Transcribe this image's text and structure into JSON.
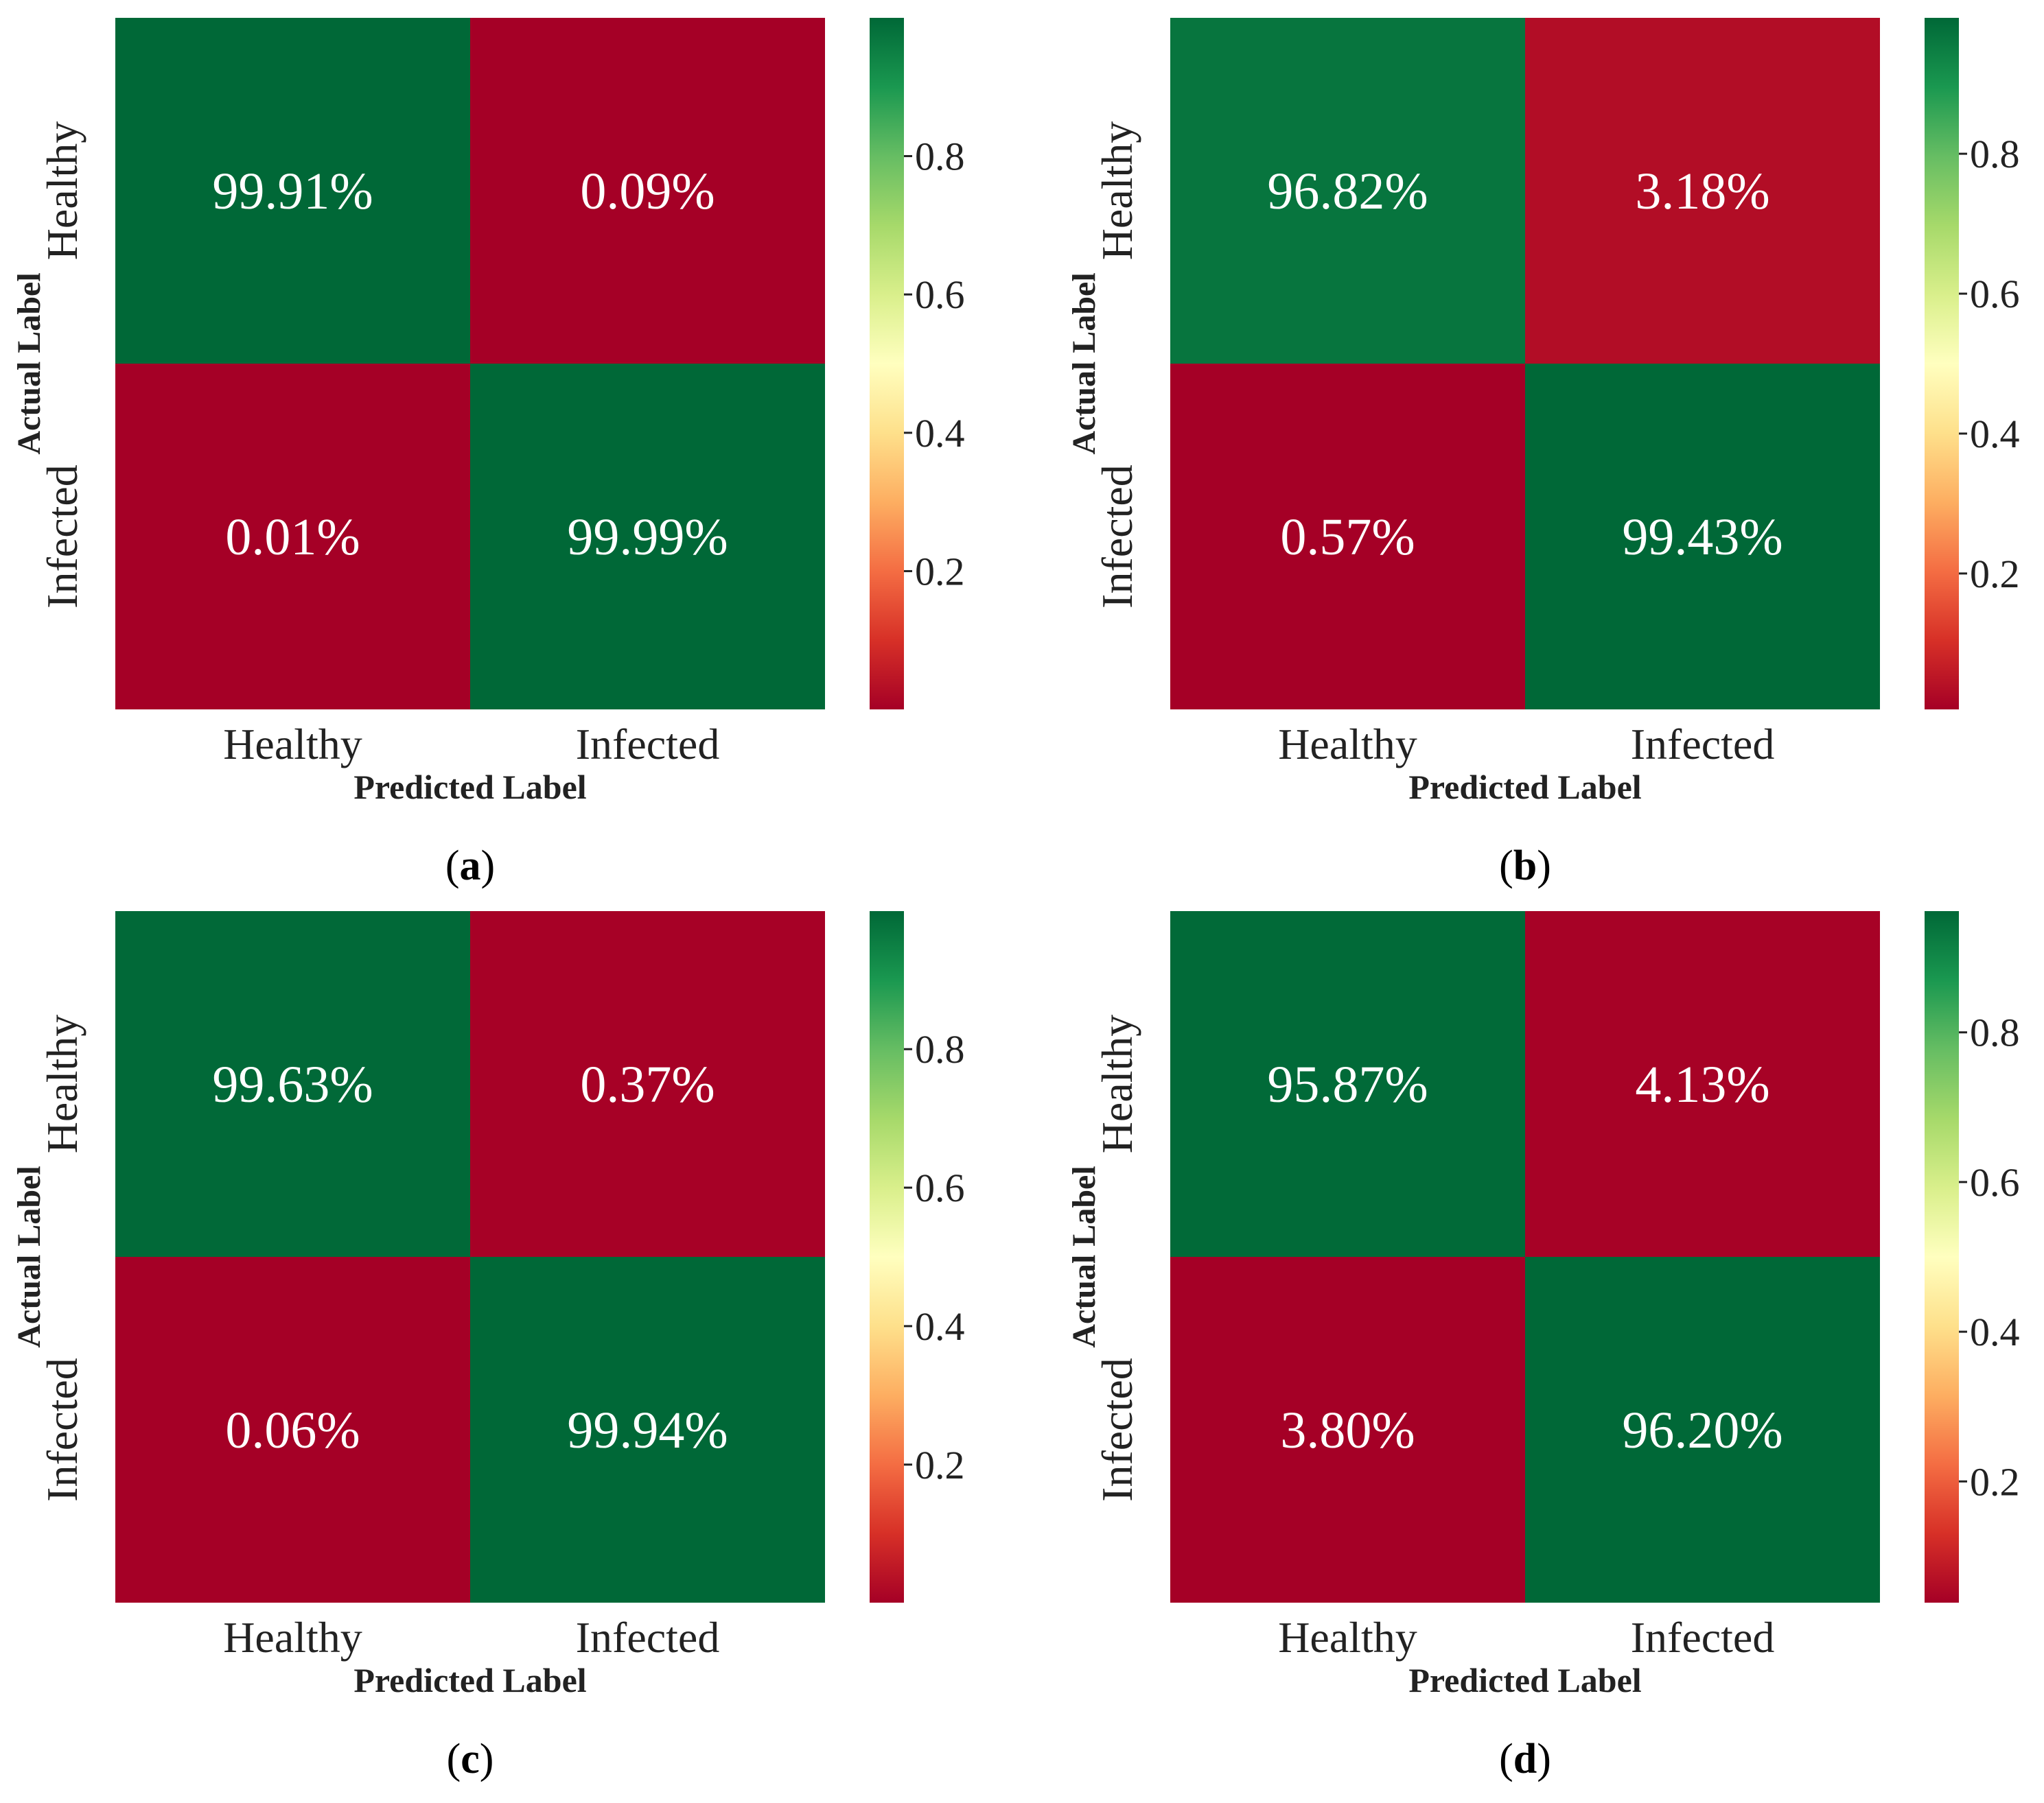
{
  "figure": {
    "panels": [
      "(a)",
      "(b)",
      "(c)",
      "(d)"
    ]
  },
  "colors": {
    "cmap": [
      "#a50026",
      "#d73027",
      "#f46d43",
      "#fdae61",
      "#fee08b",
      "#ffffbf",
      "#d9ef8b",
      "#a6d96a",
      "#66bd63",
      "#1a9850",
      "#006837"
    ],
    "annotation_text": "#ffffff",
    "axis_text": "#222222"
  },
  "chart_data": [
    {
      "type": "heatmap",
      "panel_label": "(a)",
      "xlabel": "Predicted Label",
      "ylabel": "Actual Label",
      "x_categories": [
        "Healthy",
        "Infected"
      ],
      "y_categories": [
        "Healthy",
        "Infected"
      ],
      "values": [
        [
          0.9991,
          0.0009
        ],
        [
          0.0001,
          0.9999
        ]
      ],
      "annotations": [
        [
          "99.91%",
          "0.09%"
        ],
        [
          "0.01%",
          "99.99%"
        ]
      ],
      "colorbar": {
        "ticks": [
          0.2,
          0.4,
          0.6,
          0.8
        ],
        "tick_labels": [
          "0.2",
          "0.4",
          "0.6",
          "0.8"
        ],
        "vmin": 0.0001,
        "vmax": 0.9999
      }
    },
    {
      "type": "heatmap",
      "panel_label": "(b)",
      "xlabel": "Predicted Label",
      "ylabel": "Actual Label",
      "x_categories": [
        "Healthy",
        "Infected"
      ],
      "y_categories": [
        "Healthy",
        "Infected"
      ],
      "values": [
        [
          0.9682,
          0.0318
        ],
        [
          0.0057,
          0.9943
        ]
      ],
      "annotations": [
        [
          "96.82%",
          "3.18%"
        ],
        [
          "0.57%",
          "99.43%"
        ]
      ],
      "colorbar": {
        "ticks": [
          0.2,
          0.4,
          0.6,
          0.8
        ],
        "tick_labels": [
          "0.2",
          "0.4",
          "0.6",
          "0.8"
        ],
        "vmin": 0.0057,
        "vmax": 0.9943
      }
    },
    {
      "type": "heatmap",
      "panel_label": "(c)",
      "xlabel": "Predicted Label",
      "ylabel": "Actual Label",
      "x_categories": [
        "Healthy",
        "Infected"
      ],
      "y_categories": [
        "Healthy",
        "Infected"
      ],
      "values": [
        [
          0.9963,
          0.0037
        ],
        [
          0.0006,
          0.9994
        ]
      ],
      "annotations": [
        [
          "99.63%",
          "0.37%"
        ],
        [
          "0.06%",
          "99.94%"
        ]
      ],
      "colorbar": {
        "ticks": [
          0.2,
          0.4,
          0.6,
          0.8
        ],
        "tick_labels": [
          "0.2",
          "0.4",
          "0.6",
          "0.8"
        ],
        "vmin": 0.0006,
        "vmax": 0.9994
      }
    },
    {
      "type": "heatmap",
      "panel_label": "(d)",
      "xlabel": "Predicted Label",
      "ylabel": "Actual Label",
      "x_categories": [
        "Healthy",
        "Infected"
      ],
      "y_categories": [
        "Healthy",
        "Infected"
      ],
      "values": [
        [
          0.9587,
          0.0413
        ],
        [
          0.038,
          0.962
        ]
      ],
      "annotations": [
        [
          "95.87%",
          "4.13%"
        ],
        [
          "3.80%",
          "96.20%"
        ]
      ],
      "colorbar": {
        "ticks": [
          0.2,
          0.4,
          0.6,
          0.8
        ],
        "tick_labels": [
          "0.2",
          "0.4",
          "0.6",
          "0.8"
        ],
        "vmin": 0.038,
        "vmax": 0.962
      }
    }
  ]
}
